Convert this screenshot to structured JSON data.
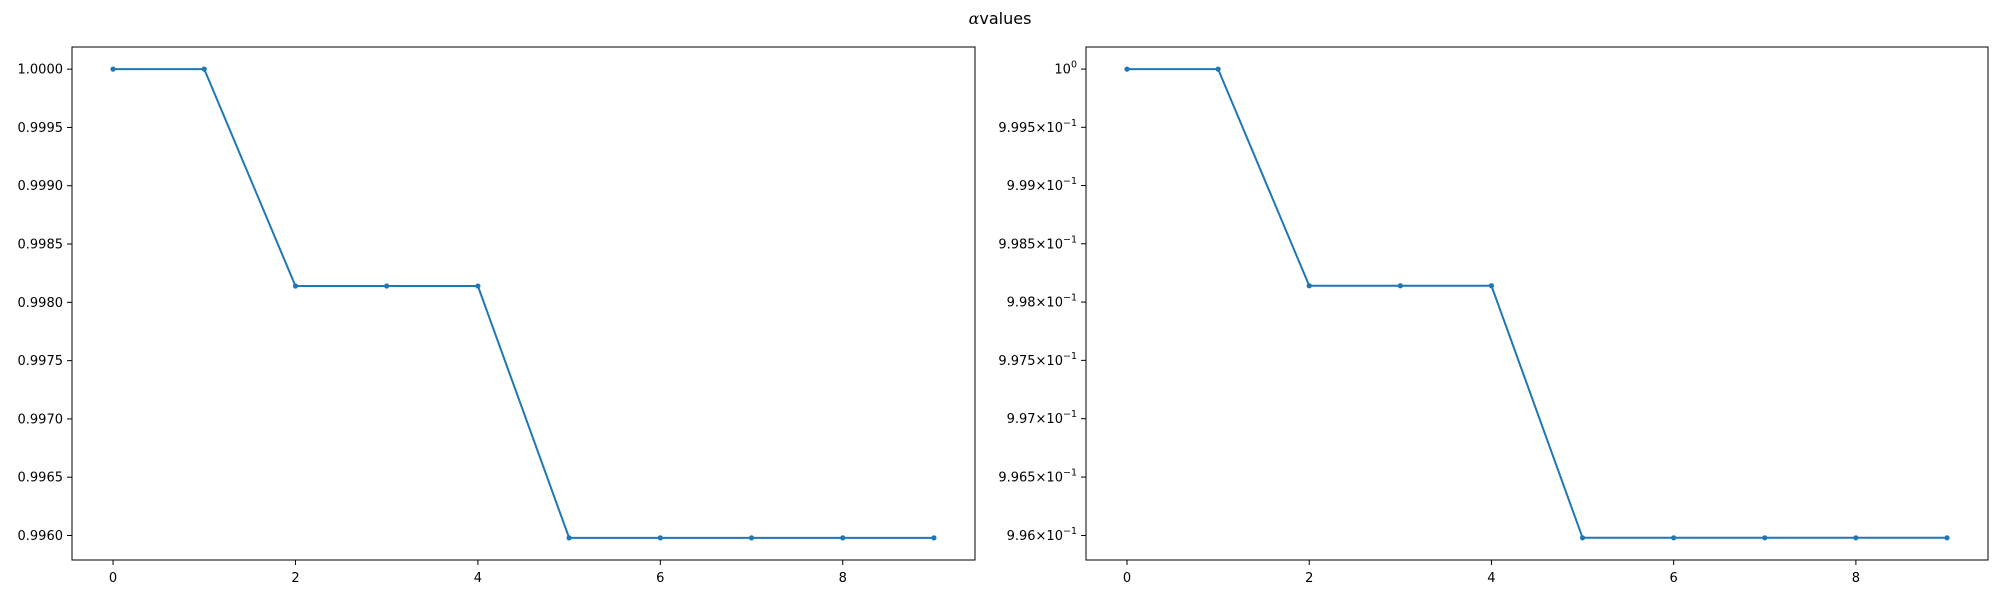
{
  "figure": {
    "title_symbol": "α",
    "title_text": "values"
  },
  "chart_data": [
    {
      "type": "line",
      "title": "",
      "xlabel": "",
      "ylabel": "",
      "yscale": "linear",
      "x": [
        0,
        1,
        2,
        3,
        4,
        5,
        6,
        7,
        8,
        9
      ],
      "series": [
        {
          "values": [
            1.0,
            1.0,
            0.99814,
            0.99814,
            0.99814,
            0.99598,
            0.99598,
            0.99598,
            0.99598,
            0.99598
          ],
          "color": "#1f77b4",
          "marker": "point"
        }
      ],
      "xlim": [
        -0.45,
        9.45
      ],
      "ylim": [
        0.99579,
        1.00019
      ],
      "xticks": [
        0,
        2,
        4,
        6,
        8
      ],
      "xtick_labels": [
        "0",
        "2",
        "4",
        "6",
        "8"
      ],
      "yticks": [
        0.996,
        0.9965,
        0.997,
        0.9975,
        0.998,
        0.9985,
        0.999,
        0.9995,
        1.0
      ],
      "ytick_labels": [
        {
          "text": "0.9960"
        },
        {
          "text": "0.9965"
        },
        {
          "text": "0.9970"
        },
        {
          "text": "0.9975"
        },
        {
          "text": "0.9980"
        },
        {
          "text": "0.9985"
        },
        {
          "text": "0.9990"
        },
        {
          "text": "0.9995"
        },
        {
          "text": "1.0000"
        }
      ],
      "grid": false,
      "legend": "none"
    },
    {
      "type": "line",
      "title": "",
      "xlabel": "",
      "ylabel": "",
      "yscale": "log",
      "x": [
        0,
        1,
        2,
        3,
        4,
        5,
        6,
        7,
        8,
        9
      ],
      "series": [
        {
          "values": [
            1.0,
            1.0,
            0.99814,
            0.99814,
            0.99814,
            0.99598,
            0.99598,
            0.99598,
            0.99598,
            0.99598
          ],
          "color": "#1f77b4",
          "marker": "point"
        }
      ],
      "xlim": [
        -0.45,
        9.45
      ],
      "ylim": [
        0.99579,
        1.00019
      ],
      "xticks": [
        0,
        2,
        4,
        6,
        8
      ],
      "xtick_labels": [
        "0",
        "2",
        "4",
        "6",
        "8"
      ],
      "yticks": [
        0.996,
        0.9965,
        0.997,
        0.9975,
        0.998,
        0.9985,
        0.999,
        0.9995,
        1.0
      ],
      "ytick_labels": [
        {
          "text": "9.96×10",
          "exp": "−1"
        },
        {
          "text": "9.965×10",
          "exp": "−1"
        },
        {
          "text": "9.97×10",
          "exp": "−1"
        },
        {
          "text": "9.975×10",
          "exp": "−1"
        },
        {
          "text": "9.98×10",
          "exp": "−1"
        },
        {
          "text": "9.985×10",
          "exp": "−1"
        },
        {
          "text": "9.99×10",
          "exp": "−1"
        },
        {
          "text": "9.995×10",
          "exp": "−1"
        },
        {
          "text": "10",
          "exp": "0"
        }
      ],
      "grid": false,
      "legend": "none"
    }
  ]
}
